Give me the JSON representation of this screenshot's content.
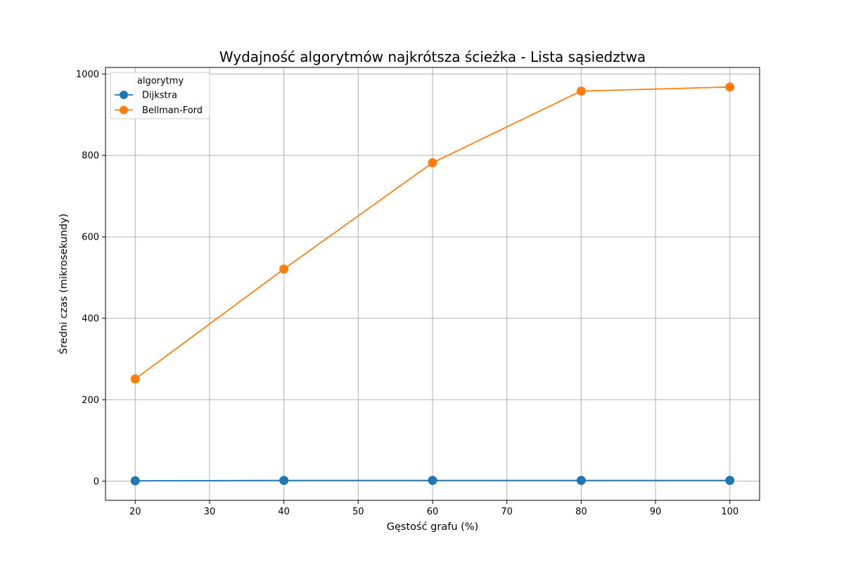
{
  "chart_data": {
    "type": "line",
    "title": "Wydajność algorytmów najkrótsza ścieżka - Lista sąsiedztwa",
    "xlabel": "Gęstość grafu (%)",
    "ylabel": "Średni czas (mikrosekundy)",
    "x": [
      20,
      40,
      60,
      80,
      100
    ],
    "xlim": [
      16,
      104
    ],
    "ylim": [
      -47,
      1016
    ],
    "xticks": [
      20,
      30,
      40,
      50,
      60,
      70,
      80,
      90,
      100
    ],
    "yticks": [
      0,
      200,
      400,
      600,
      800,
      1000
    ],
    "grid": true,
    "legend": {
      "title": "algorytmy",
      "placement": "top-left"
    },
    "series": [
      {
        "name": "Dijkstra",
        "color": "#1f77b4",
        "marker": "circle",
        "values": [
          1,
          2,
          2,
          2,
          2
        ]
      },
      {
        "name": "Bellman-Ford",
        "color": "#ff7f0e",
        "marker": "circle",
        "values": [
          251,
          521,
          782,
          958,
          968
        ]
      }
    ]
  }
}
